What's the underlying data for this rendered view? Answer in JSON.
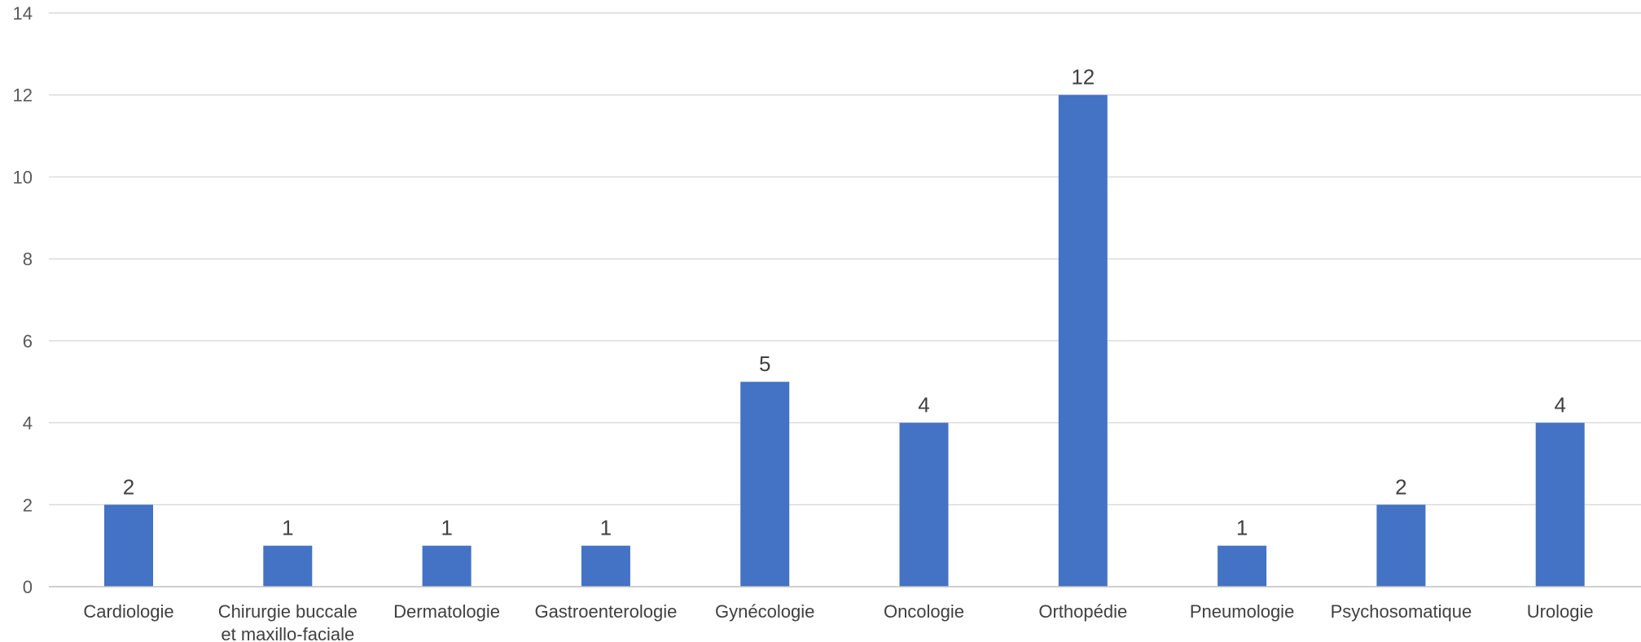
{
  "chart_data": {
    "type": "bar",
    "categories": [
      [
        "Cardiologie"
      ],
      [
        "Chirurgie buccale",
        "et maxillo-faciale"
      ],
      [
        "Dermatologie"
      ],
      [
        "Gastroenterologie"
      ],
      [
        "Gynécologie"
      ],
      [
        "Oncologie"
      ],
      [
        "Orthopédie"
      ],
      [
        "Pneumologie"
      ],
      [
        "Psychosomatique"
      ],
      [
        "Urologie"
      ]
    ],
    "values": [
      2,
      1,
      1,
      1,
      5,
      4,
      12,
      1,
      2,
      4
    ],
    "data_labels": [
      "2",
      "1",
      "1",
      "1",
      "5",
      "4",
      "12",
      "1",
      "2",
      "4"
    ],
    "y_ticks": [
      "0",
      "2",
      "4",
      "6",
      "8",
      "10",
      "12",
      "14"
    ],
    "ylim": [
      0,
      14
    ],
    "grid": true,
    "legend": "none",
    "bar_color": "#4472c4"
  }
}
